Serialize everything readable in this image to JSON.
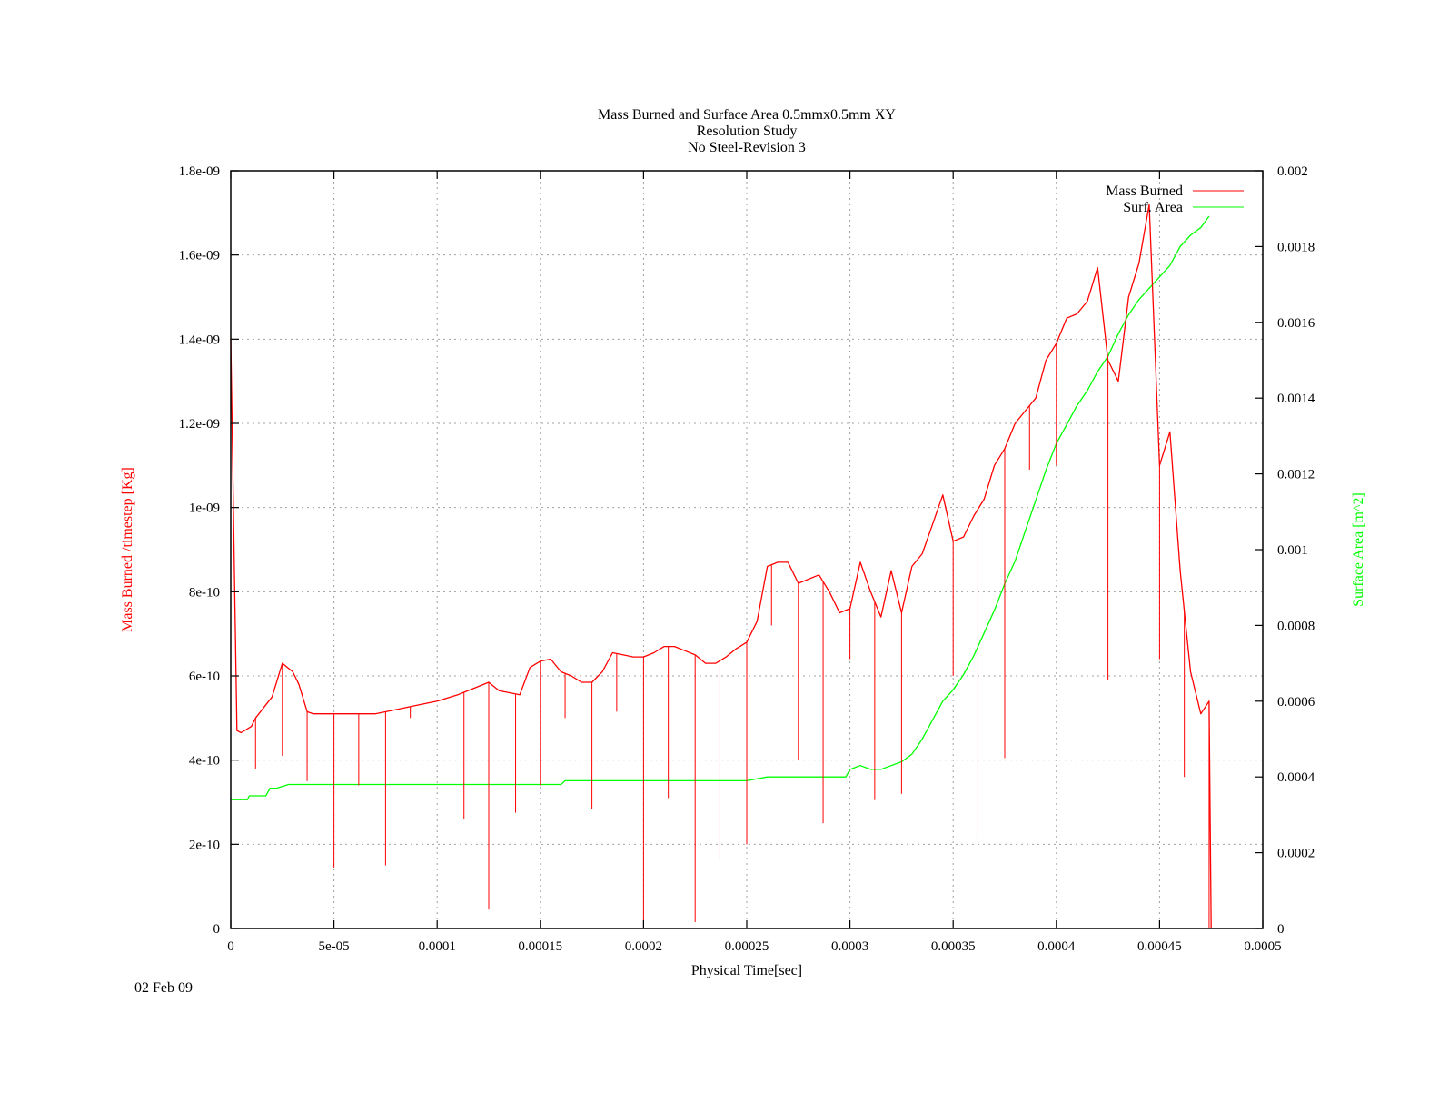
{
  "chart_data": {
    "type": "line",
    "title": [
      "Mass Burned and Surface Area 0.5mmx0.5mm XY",
      "Resolution Study",
      "No Steel-Revision 3"
    ],
    "xlabel": "Physical Time[sec]",
    "ylabel": "Mass Burned /timestep  [Kg]",
    "y2label": "Surface Area [m^2]",
    "xlim": [
      0,
      0.0005
    ],
    "ylim": [
      0,
      1.8e-09
    ],
    "y2lim": [
      0,
      0.002
    ],
    "x_ticks": [
      "0",
      "5e-05",
      "0.0001",
      "0.00015",
      "0.0002",
      "0.00025",
      "0.0003",
      "0.00035",
      "0.0004",
      "0.00045",
      "0.0005"
    ],
    "y_ticks": [
      "0",
      "2e-10",
      "4e-10",
      "6e-10",
      "8e-10",
      "1e-09",
      "1.2e-09",
      "1.4e-09",
      "1.6e-09",
      "1.8e-09"
    ],
    "y2_ticks": [
      "0",
      "0.0002",
      "0.0004",
      "0.0006",
      "0.0008",
      "0.001",
      "0.0012",
      "0.0014",
      "0.0016",
      "0.0018",
      "0.002"
    ],
    "grid": true,
    "legend_position": "top-right",
    "series": [
      {
        "name": "Mass Burned",
        "axis": "y",
        "color": "#ff0000",
        "x": [
          0,
          2e-06,
          3e-06,
          5e-06,
          1e-05,
          1.2e-05,
          2e-05,
          2.5e-05,
          3e-05,
          3.3e-05,
          3.7e-05,
          4e-05,
          5e-05,
          6e-05,
          7e-05,
          8e-05,
          9e-05,
          0.0001,
          0.00011,
          0.00012,
          0.000125,
          0.00013,
          0.00014,
          0.000145,
          0.00015,
          0.000155,
          0.00016,
          0.000165,
          0.00017,
          0.000175,
          0.00018,
          0.000185,
          0.00019,
          0.000195,
          0.0002,
          0.000205,
          0.00021,
          0.000215,
          0.00022,
          0.000225,
          0.00023,
          0.000235,
          0.00024,
          0.000245,
          0.00025,
          0.000255,
          0.00026,
          0.000265,
          0.00027,
          0.000275,
          0.00028,
          0.000285,
          0.00029,
          0.000295,
          0.0003,
          0.000305,
          0.00031,
          0.000315,
          0.00032,
          0.000325,
          0.00033,
          0.000335,
          0.00034,
          0.000345,
          0.00035,
          0.000355,
          0.00036,
          0.000365,
          0.00037,
          0.000375,
          0.00038,
          0.000385,
          0.00039,
          0.000395,
          0.0004,
          0.000405,
          0.00041,
          0.000415,
          0.00042,
          0.000425,
          0.00043,
          0.000435,
          0.00044,
          0.000445,
          0.00045,
          0.000455,
          0.00046,
          0.000465,
          0.00047,
          0.000474,
          0.000475
        ],
        "y": [
          1.4e-09,
          7.8e-10,
          4.7e-10,
          4.65e-10,
          4.8e-10,
          5e-10,
          5.5e-10,
          6.3e-10,
          6.1e-10,
          5.8e-10,
          5.15e-10,
          5.1e-10,
          5.1e-10,
          5.1e-10,
          5.1e-10,
          5.2e-10,
          5.3e-10,
          5.4e-10,
          5.55e-10,
          5.75e-10,
          5.85e-10,
          5.65e-10,
          5.55e-10,
          6.2e-10,
          6.35e-10,
          6.4e-10,
          6.1e-10,
          6e-10,
          5.85e-10,
          5.85e-10,
          6.1e-10,
          6.55e-10,
          6.5e-10,
          6.45e-10,
          6.45e-10,
          6.55e-10,
          6.7e-10,
          6.7e-10,
          6.6e-10,
          6.5e-10,
          6.3e-10,
          6.3e-10,
          6.45e-10,
          6.65e-10,
          6.8e-10,
          7.3e-10,
          8.6e-10,
          8.7e-10,
          8.7e-10,
          8.2e-10,
          8.3e-10,
          8.4e-10,
          8e-10,
          7.5e-10,
          7.6e-10,
          8.7e-10,
          8e-10,
          7.4e-10,
          8.5e-10,
          7.5e-10,
          8.6e-10,
          8.9e-10,
          9.6e-10,
          1.03e-09,
          9.2e-10,
          9.3e-10,
          9.8e-10,
          1.02e-09,
          1.1e-09,
          1.14e-09,
          1.2e-09,
          1.23e-09,
          1.26e-09,
          1.35e-09,
          1.39e-09,
          1.45e-09,
          1.46e-09,
          1.49e-09,
          1.57e-09,
          1.35e-09,
          1.3e-09,
          1.5e-09,
          1.58e-09,
          1.72e-09,
          1.1e-09,
          1.18e-09,
          8.5e-10,
          6.1e-10,
          5.1e-10,
          5.4e-10,
          0
        ]
      },
      {
        "name": "Surf. Area",
        "axis": "y2",
        "color": "#00ff00",
        "x": [
          0,
          8e-06,
          9e-06,
          1.7e-05,
          1.9e-05,
          2.2e-05,
          2.8e-05,
          3e-05,
          0.00016,
          0.000162,
          0.00025,
          0.00026,
          0.00028,
          0.00029,
          0.000298,
          0.0003,
          0.000305,
          0.00031,
          0.000315,
          0.00032,
          0.000325,
          0.00033,
          0.000335,
          0.00034,
          0.000345,
          0.00035,
          0.000355,
          0.00036,
          0.000365,
          0.00037,
          0.000375,
          0.00038,
          0.000385,
          0.00039,
          0.000395,
          0.0004,
          0.000405,
          0.00041,
          0.000415,
          0.00042,
          0.000425,
          0.00043,
          0.000435,
          0.00044,
          0.000445,
          0.00045,
          0.000455,
          0.00046,
          0.000465,
          0.00047,
          0.000474
        ],
        "y": [
          0.00034,
          0.00034,
          0.00035,
          0.00035,
          0.00037,
          0.00037,
          0.00038,
          0.00038,
          0.00038,
          0.00039,
          0.00039,
          0.0004,
          0.0004,
          0.0004,
          0.0004,
          0.00042,
          0.00043,
          0.00042,
          0.00042,
          0.00043,
          0.00044,
          0.00046,
          0.0005,
          0.00055,
          0.0006,
          0.00063,
          0.00067,
          0.00072,
          0.00078,
          0.00084,
          0.00091,
          0.00097,
          0.00105,
          0.00113,
          0.00121,
          0.00128,
          0.00133,
          0.00138,
          0.00142,
          0.00147,
          0.00151,
          0.00157,
          0.00162,
          0.00166,
          0.00169,
          0.00172,
          0.00175,
          0.0018,
          0.00183,
          0.00185,
          0.00188
        ]
      }
    ],
    "spikes_x": [
      1.2e-05,
      2.5e-05,
      3.7e-05,
      5e-05,
      6.2e-05,
      7.5e-05,
      8.7e-05,
      0.000113,
      0.000125,
      0.000138,
      0.00015,
      0.000162,
      0.000175,
      0.000187,
      0.0002,
      0.000212,
      0.000225,
      0.000237,
      0.00025,
      0.000262,
      0.000275,
      0.000287,
      0.0003,
      0.000312,
      0.000325,
      0.00035,
      0.000362,
      0.000375,
      0.000387,
      0.0004,
      0.000425,
      0.00045,
      0.000462,
      0.000474
    ],
    "spikes_y": [
      3.8e-10,
      4.1e-10,
      3.5e-10,
      1.45e-10,
      3.4e-10,
      1.5e-10,
      5e-10,
      2.6e-10,
      4.5e-11,
      2.75e-10,
      3.4e-10,
      5e-10,
      2.85e-10,
      5.15e-10,
      5e-12,
      3.1e-10,
      1.5e-11,
      1.6e-10,
      2e-10,
      7.2e-10,
      4e-10,
      2.5e-10,
      6.4e-10,
      3.05e-10,
      3.2e-10,
      6e-10,
      2.15e-10,
      4.05e-10,
      1.09e-09,
      1.1e-09,
      5.9e-10,
      6.4e-10,
      3.6e-10,
      0
    ]
  },
  "footer": {
    "date": "02 Feb 09"
  }
}
